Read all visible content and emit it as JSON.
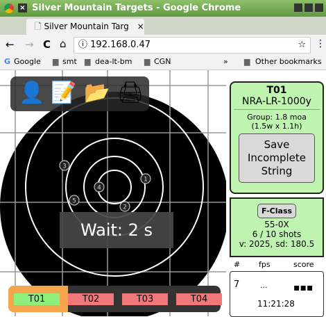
{
  "window": {
    "title": "Silver Mountain Targets - Google Chrome"
  },
  "tab": {
    "title": "Silver Mountain Targ",
    "close": "×"
  },
  "address_bar": {
    "url": "192.168.0.47"
  },
  "bookmarks": [
    "Google",
    "smt",
    "dea-lt-bm",
    "CGN"
  ],
  "bookmarks_more": "»",
  "other_bookmarks": "Other bookmarks",
  "target": {
    "shots": [
      "1",
      "2",
      "3",
      "4",
      "5"
    ],
    "wait": "Wait: 2 s"
  },
  "target_tabs": [
    "T01",
    "T02",
    "T03",
    "T04"
  ],
  "info": {
    "target": "T01",
    "course": "NRA-LR-1000y",
    "group": "Group: 1.8 moa",
    "group_size": "(1.5w x 1.1h)",
    "save_button": "Save Incomplete String"
  },
  "stats": {
    "class_button": "F-Class",
    "score": "55-0X",
    "shots": "6 / 10 shots",
    "velocity": "v: 2025, sd: 180.5"
  },
  "shot_table": {
    "headers": [
      "#",
      "fps",
      "score"
    ],
    "row": {
      "number": "7",
      "fps": "...",
      "score": "▪▪▪",
      "time": "11:21:28"
    }
  }
}
